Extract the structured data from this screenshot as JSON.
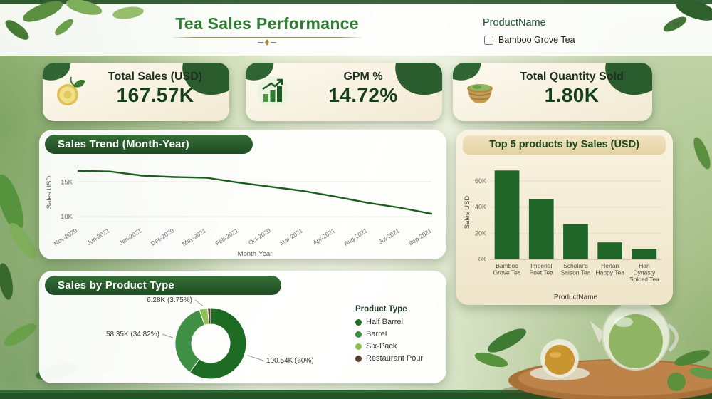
{
  "colors": {
    "title_green": "#2e7d32",
    "header_dark_green": "#24562a",
    "kpi_value_green": "#153f1b",
    "card_cream": "#f8f2e2",
    "line_green": "#1b5e20",
    "bar_green": "#1f6527",
    "tan_header": "#ead9b0"
  },
  "header": {
    "title": "Tea Sales Performance",
    "slicer_label": "ProductName",
    "slicer_option": "Bamboo Grove Tea"
  },
  "kpis": [
    {
      "label": "Total Sales (USD)",
      "value": "167.57K",
      "icon": "tea-fruit-icon"
    },
    {
      "label": "GPM %",
      "value": "14.72%",
      "icon": "growth-chart-icon"
    },
    {
      "label": "Total Quantity Sold",
      "value": "1.80K",
      "icon": "tea-basket-icon"
    }
  ],
  "chart_data": [
    {
      "type": "line",
      "title": "Sales Trend (Month-Year)",
      "xlabel": "Month-Year",
      "ylabel": "Sales USD",
      "unit": "K",
      "categories": [
        "Nov-2020",
        "Jun-2021",
        "Jan-2021",
        "Dec-2020",
        "May-2021",
        "Feb-2021",
        "Oct-2020",
        "Mar-2021",
        "Apr-2021",
        "Aug-2021",
        "Jul-2021",
        "Sep-2021"
      ],
      "values": [
        16.6,
        16.5,
        15.9,
        15.7,
        15.6,
        14.9,
        14.3,
        13.7,
        12.9,
        12.0,
        11.3,
        10.4
      ],
      "yticks": [
        10,
        15
      ],
      "ylim": [
        9,
        18
      ],
      "grid": "horizontal",
      "legend": "off"
    },
    {
      "type": "bar",
      "title": "Top 5 products by Sales (USD)",
      "xlabel": "ProductName",
      "ylabel": "Sales USD",
      "unit": "K",
      "categories": [
        "Bamboo Grove Tea",
        "Imperial Poet Tea",
        "Scholar's Saison Tea",
        "Henan Happy Tea",
        "Han Dynasty Spiced Tea"
      ],
      "values": [
        68,
        46,
        27,
        13,
        8
      ],
      "yticks": [
        0,
        20,
        40,
        60
      ],
      "ylim": [
        0,
        72
      ],
      "legend": "off"
    },
    {
      "type": "pie",
      "title": "Sales by Product Type",
      "legend_title": "Product Type",
      "legend_position": "right",
      "slices": [
        {
          "label": "Half Barrel",
          "value_label": "100.54K (60%)",
          "pct": 60.0,
          "color": "#1e6b24"
        },
        {
          "label": "Barrel",
          "value_label": "58.35K (34.82%)",
          "pct": 34.82,
          "color": "#3f8f44"
        },
        {
          "label": "Six-Pack",
          "value_label": "6.28K (3.75%)",
          "pct": 3.75,
          "color": "#8cc152"
        },
        {
          "label": "Restaurant Pour",
          "value_label": "",
          "pct": 1.43,
          "color": "#5f4030"
        }
      ]
    }
  ]
}
